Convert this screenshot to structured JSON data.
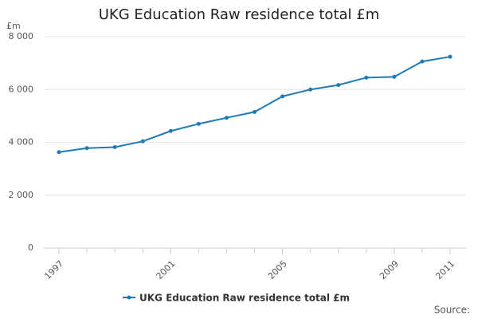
{
  "chart_data": {
    "type": "line",
    "title": "UKG Education Raw residence total £m",
    "y_label": "£m",
    "x": [
      1997,
      1998,
      1999,
      2000,
      2001,
      2002,
      2003,
      2004,
      2005,
      2006,
      2007,
      2008,
      2009,
      2010,
      2011
    ],
    "series": [
      {
        "name": "UKG Education Raw residence total £m",
        "color": "#1f7ab8",
        "values": [
          3630,
          3780,
          3820,
          4040,
          4430,
          4700,
          4930,
          5150,
          5740,
          6000,
          6170,
          6450,
          6480,
          7060,
          7240
        ]
      }
    ],
    "xlim": [
      1997,
      2011
    ],
    "xticks": [
      1997,
      2001,
      2005,
      2009,
      2011
    ],
    "ylim": [
      0,
      8000
    ],
    "yticks": [
      0,
      {
        "value": 2000,
        "label": "2 000"
      },
      {
        "value": 4000,
        "label": "4 000"
      },
      {
        "value": 6000,
        "label": "6 000"
      },
      {
        "value": 8000,
        "label": "8 000"
      }
    ],
    "grid": true,
    "legend": "bottom",
    "source": "Source:"
  }
}
